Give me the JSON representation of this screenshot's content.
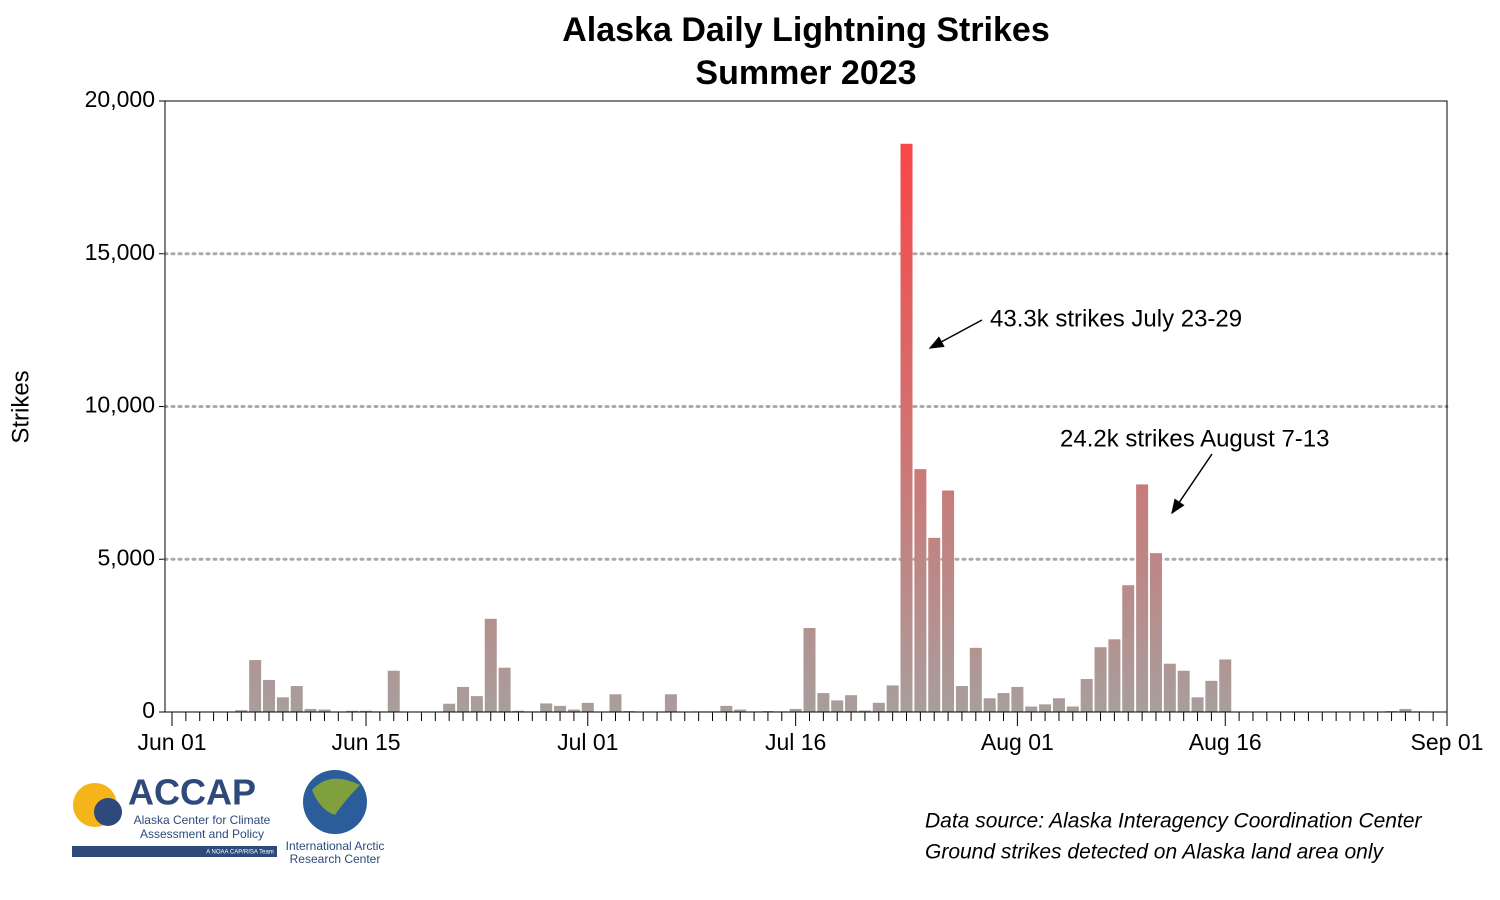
{
  "chart_data": {
    "type": "bar",
    "title": "Alaska Daily Lightning Strikes",
    "subtitle": "Summer 2023",
    "y_label": "Strikes",
    "categories": [
      "Jun 01",
      null,
      null,
      null,
      null,
      null,
      null,
      null,
      null,
      null,
      null,
      null,
      null,
      null,
      "Jun 15",
      null,
      null,
      null,
      null,
      null,
      null,
      null,
      null,
      null,
      null,
      null,
      null,
      null,
      null,
      null,
      "Jul 01",
      null,
      null,
      null,
      null,
      null,
      null,
      null,
      null,
      null,
      null,
      null,
      null,
      null,
      null,
      "Jul 16",
      null,
      null,
      null,
      null,
      null,
      null,
      null,
      null,
      null,
      null,
      null,
      null,
      null,
      null,
      null,
      "Aug 01",
      null,
      null,
      null,
      null,
      null,
      null,
      null,
      null,
      null,
      null,
      null,
      null,
      null,
      null,
      "Aug 16",
      null,
      null,
      null,
      null,
      null,
      null,
      null,
      null,
      null,
      null,
      null,
      null,
      null,
      null,
      null,
      "Sep 01"
    ],
    "values": [
      0,
      0,
      0,
      0,
      0,
      60,
      1700,
      1050,
      480,
      850,
      100,
      80,
      0,
      40,
      40,
      20,
      1350,
      0,
      0,
      0,
      270,
      820,
      520,
      3050,
      1450,
      40,
      20,
      280,
      200,
      80,
      300,
      0,
      580,
      30,
      0,
      0,
      580,
      0,
      20,
      20,
      200,
      80,
      20,
      30,
      20,
      100,
      2750,
      620,
      380,
      550,
      50,
      300,
      870,
      18600,
      7950,
      5700,
      7250,
      850,
      2100,
      450,
      620,
      820,
      180,
      250,
      450,
      180,
      1080,
      2120,
      2380,
      4150,
      7450,
      5200,
      1580,
      1350,
      480,
      1020,
      1720,
      0,
      0,
      0,
      0,
      0,
      0,
      0,
      0,
      0,
      0,
      0,
      30,
      100,
      20,
      0,
      null
    ],
    "gradient": [
      "#a89e9c",
      "#ff4040"
    ],
    "ylim": [
      0,
      20000
    ],
    "yticks": [
      0,
      {
        "value": 5000,
        "label": "5,000"
      },
      {
        "value": 10000,
        "label": "10,000"
      },
      {
        "value": 15000,
        "label": "15,000"
      },
      {
        "value": 20000,
        "label": "20,000"
      }
    ],
    "grid": true,
    "annotations": [
      {
        "text": "43.3k strikes July 23-29"
      },
      {
        "text": "24.2k strikes August 7-13"
      }
    ],
    "notes": [
      "Data source: Alaska Interagency Coordination Center",
      "Ground strikes detected on Alaska land area only"
    ]
  },
  "logos": {
    "accap": [
      "ACCAP",
      "Alaska Center for Climate",
      "Assessment and Policy",
      "A NOAA CAP/RISA Team"
    ],
    "iarc": [
      "International Arctic",
      "Research Center"
    ]
  }
}
